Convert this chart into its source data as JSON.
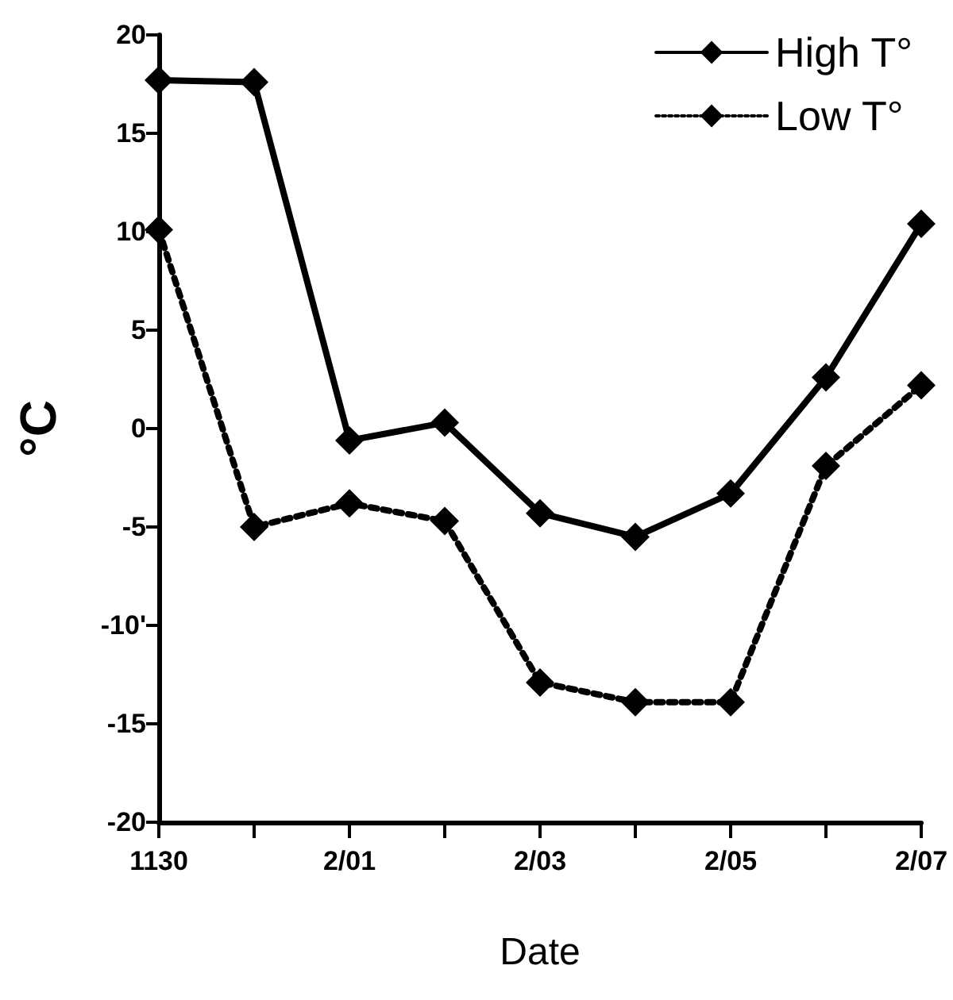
{
  "chart_data": {
    "type": "line",
    "xlabel": "Date",
    "ylabel": "°C",
    "categories": [
      "1130",
      null,
      "2/01",
      null,
      "2/03",
      null,
      "2/05",
      null,
      "2/07"
    ],
    "series": [
      {
        "name": "High T°",
        "color": "#000000",
        "line_style": "solid",
        "values": [
          17.7,
          17.6,
          -0.6,
          0.3,
          -4.3,
          -5.5,
          -3.3,
          2.6,
          10.4
        ]
      },
      {
        "name": "Low T°",
        "color": "#000000",
        "line_style": "dotted",
        "values": [
          10.1,
          -5.0,
          -3.8,
          -4.7,
          -12.9,
          -13.9,
          -13.9,
          -1.9,
          2.2
        ]
      }
    ],
    "ylim": [
      -20,
      20
    ],
    "yticks": [
      20,
      15,
      10,
      5,
      0,
      -5,
      {
        "value": -10,
        "label": "-10'"
      },
      -15,
      -20
    ],
    "marker": "diamond",
    "grid": false,
    "legend": "top right"
  }
}
